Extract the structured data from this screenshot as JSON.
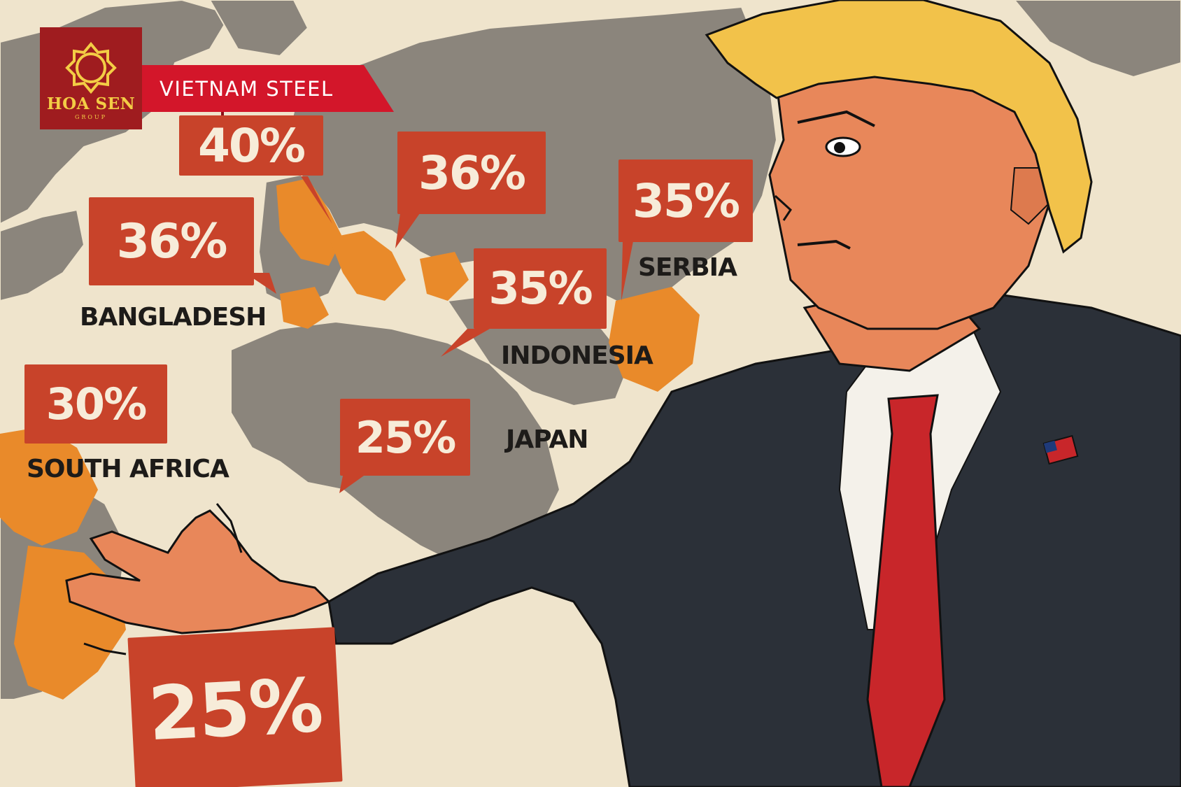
{
  "brand": {
    "logo_text": "HOA SEN",
    "logo_subtext": "GROUP",
    "banner": "VIETNAM STEEL",
    "colors": {
      "logo_bg": "#9f1c1f",
      "banner": "#d3162a",
      "logo_gold": "#f3cd45"
    }
  },
  "tariffs": [
    {
      "id": "top-left",
      "rate": "40%",
      "country": ""
    },
    {
      "id": "bangladesh",
      "rate": "36%",
      "country": "BANGLADESH"
    },
    {
      "id": "europe-east",
      "rate": "36%",
      "country": ""
    },
    {
      "id": "serbia",
      "rate": "35%",
      "country": "SERBIA"
    },
    {
      "id": "indonesia",
      "rate": "35%",
      "country": "INDONESIA"
    },
    {
      "id": "south-africa",
      "rate": "30%",
      "country": "SOUTH AFRICA"
    },
    {
      "id": "japan",
      "rate": "25%",
      "country": "JAPAN"
    },
    {
      "id": "held",
      "rate": "25%",
      "country": ""
    }
  ],
  "colors": {
    "bubble": "#c8432a",
    "bubble_text": "#f7ecd9",
    "land": "#8b857c",
    "highlight": "#e98a2a",
    "paper": "#efe4cc"
  }
}
